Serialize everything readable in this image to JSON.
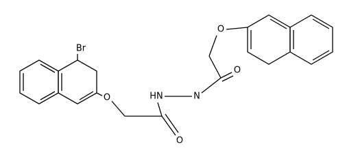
{
  "atoms": [
    "Br",
    "O",
    "O",
    "HN",
    "N",
    "O",
    "O"
  ]
}
